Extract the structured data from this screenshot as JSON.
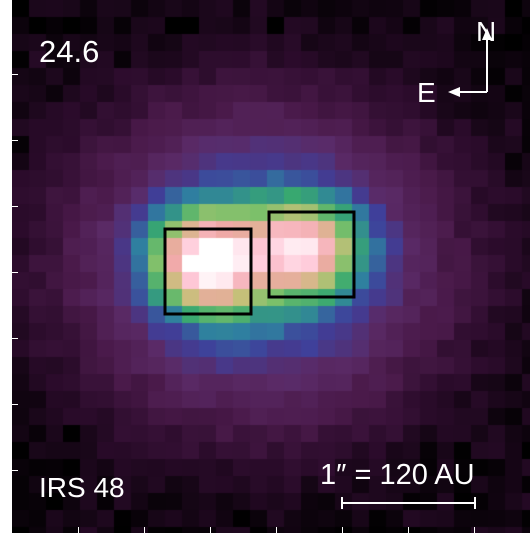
{
  "image": {
    "wavelength_label": "24.6",
    "source_label": "IRS 48",
    "scale_bar_label": "1″ = 120 AU",
    "compass": {
      "north_label": "N",
      "east_label": "E"
    },
    "colormap": [
      "#000000",
      "#2a0b2a",
      "#4a1a4a",
      "#5a2a66",
      "#3f3f9a",
      "#2f7fa0",
      "#38a870",
      "#7cc06a",
      "#c8c07a",
      "#f0a8a8",
      "#ffc8d8",
      "#ffffff"
    ],
    "apertures": [
      {
        "name": "east-lobe-aperture"
      },
      {
        "name": "west-lobe-aperture"
      }
    ]
  }
}
